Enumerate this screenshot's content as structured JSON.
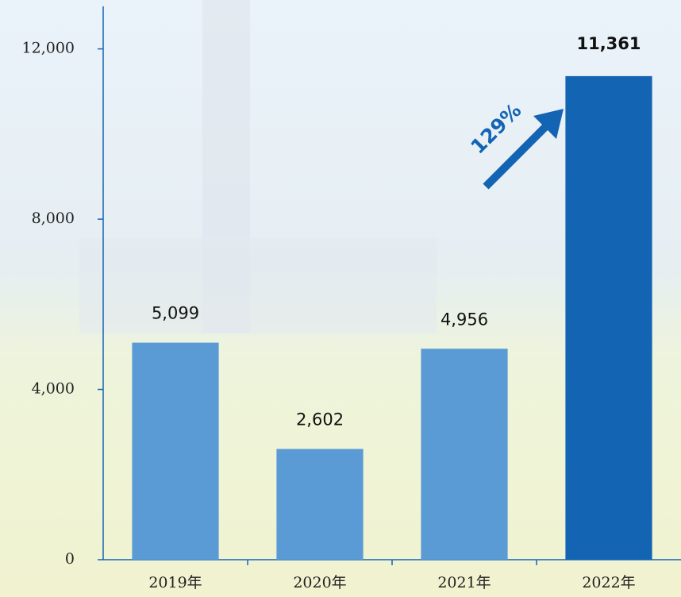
{
  "chart_data": {
    "type": "bar",
    "categories": [
      "2019年",
      "2020年",
      "2021年",
      "2022年"
    ],
    "values": [
      5099,
      2602,
      4956,
      11361
    ],
    "value_labels": [
      "5,099",
      "2,602",
      "4,956",
      "11,361"
    ],
    "colors": [
      "#5b9bd5",
      "#5b9bd5",
      "#5b9bd5",
      "#1464b4"
    ],
    "ylim": [
      0,
      13000
    ],
    "yticks": [
      0,
      {
        "value": 4000,
        "label": "4,000"
      },
      {
        "value": 8000,
        "label": "8,000"
      },
      {
        "value": 12000,
        "label": "12,000"
      }
    ],
    "annotation": "129%"
  }
}
